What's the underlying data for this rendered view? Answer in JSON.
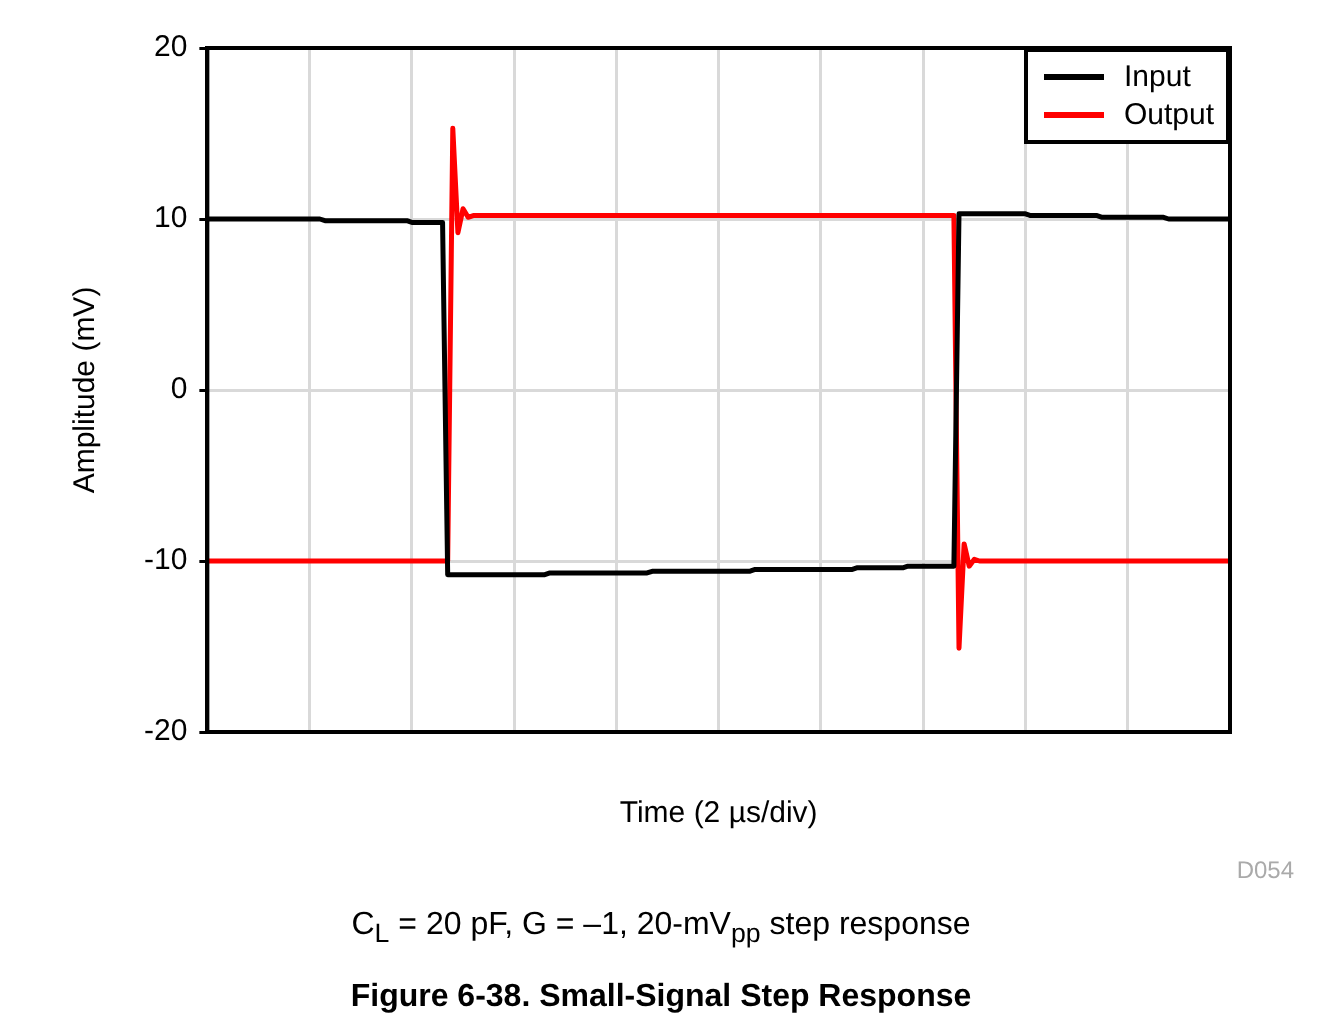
{
  "chart_data": {
    "type": "line",
    "title": "Figure 6-38. Small-Signal Step Response",
    "xlabel": "Time (2 µs/div)",
    "ylabel": "Amplitude (mV)",
    "annotations": [
      "D054",
      "C$_{L}$ = 20 pF, G = –1, 20-mV$_{pp}$ step response"
    ],
    "categories": [
      null,
      null,
      null,
      null,
      null,
      null,
      null,
      null,
      null,
      null,
      null,
      null,
      null,
      null,
      null,
      null,
      null,
      null,
      null,
      null,
      null,
      null,
      null,
      null,
      null,
      null,
      null,
      null,
      null,
      null,
      null,
      null,
      null,
      null,
      null,
      null,
      null,
      null,
      null,
      null,
      null,
      null,
      null,
      null,
      null,
      null,
      null,
      null,
      null,
      null,
      null,
      null,
      null,
      null,
      null,
      null,
      null,
      null,
      null,
      null,
      null,
      null,
      null,
      null,
      null,
      null,
      null,
      null,
      null,
      null,
      null,
      null,
      null,
      null,
      null,
      null,
      null,
      null,
      null,
      null,
      null,
      null,
      null,
      null,
      null,
      null,
      null,
      null,
      null,
      null,
      null,
      null,
      null,
      null,
      null,
      null,
      null,
      null,
      null,
      null,
      null,
      null,
      null,
      null,
      null,
      null,
      null,
      null,
      null,
      null,
      null,
      null,
      null,
      null,
      null,
      null,
      null,
      null,
      null,
      null,
      null,
      null,
      null,
      null,
      null,
      null,
      null,
      null,
      null,
      null,
      null,
      null,
      null,
      null,
      null,
      null,
      null,
      null,
      null,
      null,
      null,
      null,
      null,
      null,
      null,
      null,
      null,
      null,
      null,
      null,
      null,
      null,
      null,
      null,
      null,
      null,
      null,
      null,
      null,
      null,
      null,
      null,
      null,
      null,
      null,
      null,
      null,
      null,
      null,
      null,
      null,
      null,
      null,
      null,
      null,
      null,
      null,
      null,
      null,
      null,
      null,
      null,
      null,
      null,
      null,
      null,
      null,
      null,
      null,
      null,
      null,
      null,
      null,
      null,
      null,
      null,
      null,
      null,
      null,
      null,
      null
    ],
    "ylim": [
      -20,
      20
    ],
    "yticks": [
      -20,
      -10,
      0,
      10,
      20
    ],
    "tick_labels": "y",
    "grid": true,
    "legend": "top right",
    "marker": "none",
    "line_style": "solid",
    "series": [
      {
        "name": "Input",
        "color": "#000000",
        "values": [
          10.0,
          10.0,
          10.0,
          10.0,
          10.0,
          10.0,
          10.0,
          10.0,
          10.0,
          10.0,
          10.0,
          10.0,
          10.0,
          10.0,
          10.0,
          10.0,
          10.0,
          10.0,
          10.0,
          10.0,
          10.0,
          10.0,
          10.0,
          9.9,
          9.9,
          9.9,
          9.9,
          9.9,
          9.9,
          9.9,
          9.9,
          9.9,
          9.9,
          9.9,
          9.9,
          9.9,
          9.9,
          9.9,
          9.9,
          9.9,
          9.8,
          9.8,
          9.8,
          9.8,
          9.8,
          9.8,
          9.8,
          -10.8,
          -10.8,
          -10.8,
          -10.8,
          -10.8,
          -10.8,
          -10.8,
          -10.8,
          -10.8,
          -10.8,
          -10.8,
          -10.8,
          -10.8,
          -10.8,
          -10.8,
          -10.8,
          -10.8,
          -10.8,
          -10.8,
          -10.8,
          -10.7,
          -10.7,
          -10.7,
          -10.7,
          -10.7,
          -10.7,
          -10.7,
          -10.7,
          -10.7,
          -10.7,
          -10.7,
          -10.7,
          -10.7,
          -10.7,
          -10.7,
          -10.7,
          -10.7,
          -10.7,
          -10.7,
          -10.7,
          -10.6,
          -10.6,
          -10.6,
          -10.6,
          -10.6,
          -10.6,
          -10.6,
          -10.6,
          -10.6,
          -10.6,
          -10.6,
          -10.6,
          -10.6,
          -10.6,
          -10.6,
          -10.6,
          -10.6,
          -10.6,
          -10.6,
          -10.6,
          -10.5,
          -10.5,
          -10.5,
          -10.5,
          -10.5,
          -10.5,
          -10.5,
          -10.5,
          -10.5,
          -10.5,
          -10.5,
          -10.5,
          -10.5,
          -10.5,
          -10.5,
          -10.5,
          -10.5,
          -10.5,
          -10.5,
          -10.5,
          -10.4,
          -10.4,
          -10.4,
          -10.4,
          -10.4,
          -10.4,
          -10.4,
          -10.4,
          -10.4,
          -10.4,
          -10.3,
          -10.3,
          -10.3,
          -10.3,
          -10.3,
          -10.3,
          -10.3,
          -10.3,
          -10.3,
          -10.3,
          10.3,
          10.3,
          10.3,
          10.3,
          10.3,
          10.3,
          10.3,
          10.3,
          10.3,
          10.3,
          10.3,
          10.3,
          10.3,
          10.3,
          10.2,
          10.2,
          10.2,
          10.2,
          10.2,
          10.2,
          10.2,
          10.2,
          10.2,
          10.2,
          10.2,
          10.2,
          10.2,
          10.2,
          10.1,
          10.1,
          10.1,
          10.1,
          10.1,
          10.1,
          10.1,
          10.1,
          10.1,
          10.1,
          10.1,
          10.1,
          10.1,
          10.0,
          10.0,
          10.0,
          10.0,
          10.0,
          10.0,
          10.0,
          10.0,
          10.0,
          10.0,
          10.0,
          10.0,
          10.0
        ]
      },
      {
        "name": "Output",
        "color": "#ff0000",
        "values": [
          -10.0,
          -10.0,
          -10.0,
          -10.0,
          -10.0,
          -10.0,
          -10.0,
          -10.0,
          -10.0,
          -10.0,
          -10.0,
          -10.0,
          -10.0,
          -10.0,
          -10.0,
          -10.0,
          -10.0,
          -10.0,
          -10.0,
          -10.0,
          -10.0,
          -10.0,
          -10.0,
          -10.0,
          -10.0,
          -10.0,
          -10.0,
          -10.0,
          -10.0,
          -10.0,
          -10.0,
          -10.0,
          -10.0,
          -10.0,
          -10.0,
          -10.0,
          -10.0,
          -10.0,
          -10.0,
          -10.0,
          -10.0,
          -10.0,
          -10.0,
          -10.0,
          -10.0,
          -10.0,
          -10.0,
          -10.0,
          15.3,
          9.2,
          10.6,
          10.1,
          10.2,
          10.2,
          10.2,
          10.2,
          10.2,
          10.2,
          10.2,
          10.2,
          10.2,
          10.2,
          10.2,
          10.2,
          10.2,
          10.2,
          10.2,
          10.2,
          10.2,
          10.2,
          10.2,
          10.2,
          10.2,
          10.2,
          10.2,
          10.2,
          10.2,
          10.2,
          10.2,
          10.2,
          10.2,
          10.2,
          10.2,
          10.2,
          10.2,
          10.2,
          10.2,
          10.2,
          10.2,
          10.2,
          10.2,
          10.2,
          10.2,
          10.2,
          10.2,
          10.2,
          10.2,
          10.2,
          10.2,
          10.2,
          10.2,
          10.2,
          10.2,
          10.2,
          10.2,
          10.2,
          10.2,
          10.2,
          10.2,
          10.2,
          10.2,
          10.2,
          10.2,
          10.2,
          10.2,
          10.2,
          10.2,
          10.2,
          10.2,
          10.2,
          10.2,
          10.2,
          10.2,
          10.2,
          10.2,
          10.2,
          10.2,
          10.2,
          10.2,
          10.2,
          10.2,
          10.2,
          10.2,
          10.2,
          10.2,
          10.2,
          10.2,
          10.2,
          10.2,
          10.2,
          10.2,
          10.2,
          10.2,
          10.2,
          10.2,
          10.2,
          10.2,
          -15.1,
          -9.0,
          -10.3,
          -9.9,
          -10.0,
          -10.0,
          -10.0,
          -10.0,
          -10.0,
          -10.0,
          -10.0,
          -10.0,
          -10.0,
          -10.0,
          -10.0,
          -10.0,
          -10.0,
          -10.0,
          -10.0,
          -10.0,
          -10.0,
          -10.0,
          -10.0,
          -10.0,
          -10.0,
          -10.0,
          -10.0,
          -10.0,
          -10.0,
          -10.0,
          -10.0,
          -10.0,
          -10.0,
          -10.0,
          -10.0,
          -10.0,
          -10.0,
          -10.0,
          -10.0,
          -10.0,
          -10.0,
          -10.0,
          -10.0,
          -10.0,
          -10.0,
          -10.0,
          -10.0,
          -10.0,
          -10.0,
          -10.0,
          -10.0,
          -10.0,
          -10.0,
          -10.0
        ]
      }
    ]
  }
}
